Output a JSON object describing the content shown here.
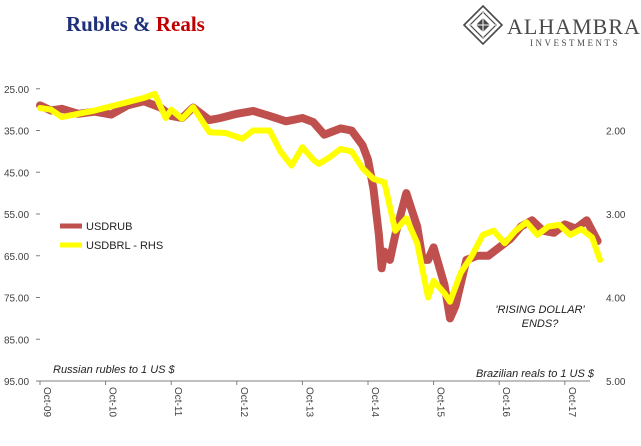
{
  "title_part1": "Rubles & ",
  "title_part2": "Reals",
  "logo": {
    "name": "ALHAMBRA",
    "sub": "INVESTMENTS"
  },
  "colors": {
    "rub": "#c0504d",
    "brl": "#ffff00",
    "title1": "#1f2f7a",
    "title2": "#c00000"
  },
  "chart_data": {
    "type": "line",
    "x_ticks": [
      "Oct-09",
      "Oct-10",
      "Oct-11",
      "Oct-12",
      "Oct-13",
      "Oct-14",
      "Oct-15",
      "Oct-16",
      "Oct-17"
    ],
    "y_left": {
      "ticks": [
        "25.00",
        "35.00",
        "45.00",
        "55.00",
        "65.00",
        "75.00",
        "85.00",
        "95.00"
      ],
      "range": [
        95,
        15
      ],
      "inverted": true
    },
    "y_right": {
      "ticks": [
        "2.00",
        "3.00",
        "4.00",
        "5.00"
      ],
      "range": [
        5.0,
        1.0
      ],
      "inverted": true
    },
    "annotations": {
      "rising": "'RISING DOLLAR'",
      "ends": "ENDS?",
      "left_note": "Russian rubles to 1 US $",
      "right_note": "Brazilian reals to 1 US $"
    },
    "series": [
      {
        "name": "USDRUB",
        "axis": "left",
        "points": [
          [
            "2009-10",
            29.0
          ],
          [
            "2009-12",
            30.2
          ],
          [
            "2010-02",
            29.8
          ],
          [
            "2010-05",
            31.0
          ],
          [
            "2010-08",
            30.5
          ],
          [
            "2010-11",
            31.2
          ],
          [
            "2011-02",
            29.0
          ],
          [
            "2011-05",
            28.0
          ],
          [
            "2011-08",
            29.5
          ],
          [
            "2011-10",
            31.5
          ],
          [
            "2011-12",
            32.0
          ],
          [
            "2012-02",
            29.5
          ],
          [
            "2012-05",
            32.5
          ],
          [
            "2012-07",
            32.0
          ],
          [
            "2012-10",
            31.0
          ],
          [
            "2013-01",
            30.3
          ],
          [
            "2013-04",
            31.5
          ],
          [
            "2013-07",
            32.8
          ],
          [
            "2013-10",
            32.0
          ],
          [
            "2013-12",
            33.0
          ],
          [
            "2014-02",
            36.0
          ],
          [
            "2014-03",
            35.5
          ],
          [
            "2014-05",
            34.5
          ],
          [
            "2014-07",
            35.0
          ],
          [
            "2014-09",
            38.5
          ],
          [
            "2014-10",
            42.0
          ],
          [
            "2014-11",
            49.0
          ],
          [
            "2014-12",
            60.0
          ],
          [
            "2014-12-16",
            68.0
          ],
          [
            "2015-01",
            64.0
          ],
          [
            "2015-02",
            66.0
          ],
          [
            "2015-03",
            60.0
          ],
          [
            "2015-05",
            50.0
          ],
          [
            "2015-06",
            54.0
          ],
          [
            "2015-07",
            58.0
          ],
          [
            "2015-08",
            66.0
          ],
          [
            "2015-09",
            66.0
          ],
          [
            "2015-10",
            63.0
          ],
          [
            "2015-12",
            72.0
          ],
          [
            "2016-01",
            80.0
          ],
          [
            "2016-02",
            77.0
          ],
          [
            "2016-04",
            66.0
          ],
          [
            "2016-06",
            65.0
          ],
          [
            "2016-08",
            65.0
          ],
          [
            "2016-10",
            63.0
          ],
          [
            "2016-12",
            61.0
          ],
          [
            "2017-02",
            58.0
          ],
          [
            "2017-04",
            56.5
          ],
          [
            "2017-06",
            59.0
          ],
          [
            "2017-08",
            59.5
          ],
          [
            "2017-10",
            57.5
          ],
          [
            "2017-12",
            58.5
          ],
          [
            "2018-02",
            56.5
          ],
          [
            "2018-04",
            61.5
          ]
        ]
      },
      {
        "name": "USDBRL - RHS",
        "axis": "right",
        "points": [
          [
            "2009-10",
            1.73
          ],
          [
            "2009-12",
            1.75
          ],
          [
            "2010-02",
            1.84
          ],
          [
            "2010-05",
            1.8
          ],
          [
            "2010-08",
            1.76
          ],
          [
            "2010-11",
            1.71
          ],
          [
            "2011-02",
            1.66
          ],
          [
            "2011-05",
            1.61
          ],
          [
            "2011-07",
            1.56
          ],
          [
            "2011-09",
            1.85
          ],
          [
            "2011-10",
            1.75
          ],
          [
            "2011-12",
            1.86
          ],
          [
            "2012-02",
            1.72
          ],
          [
            "2012-05",
            2.02
          ],
          [
            "2012-08",
            2.03
          ],
          [
            "2012-11",
            2.1
          ],
          [
            "2013-01",
            2.0
          ],
          [
            "2013-04",
            2.0
          ],
          [
            "2013-06",
            2.25
          ],
          [
            "2013-08",
            2.42
          ],
          [
            "2013-10",
            2.2
          ],
          [
            "2013-12",
            2.35
          ],
          [
            "2014-01",
            2.4
          ],
          [
            "2014-03",
            2.32
          ],
          [
            "2014-05",
            2.22
          ],
          [
            "2014-07",
            2.25
          ],
          [
            "2014-09",
            2.45
          ],
          [
            "2014-11",
            2.58
          ],
          [
            "2015-01",
            2.62
          ],
          [
            "2015-03",
            3.2
          ],
          [
            "2015-05",
            3.05
          ],
          [
            "2015-07",
            3.35
          ],
          [
            "2015-09",
            4.0
          ],
          [
            "2015-10",
            3.8
          ],
          [
            "2015-12",
            3.95
          ],
          [
            "2016-01",
            4.05
          ],
          [
            "2016-03",
            3.7
          ],
          [
            "2016-05",
            3.5
          ],
          [
            "2016-07",
            3.25
          ],
          [
            "2016-09",
            3.2
          ],
          [
            "2016-11",
            3.35
          ],
          [
            "2017-01",
            3.2
          ],
          [
            "2017-03",
            3.1
          ],
          [
            "2017-05",
            3.25
          ],
          [
            "2017-07",
            3.15
          ],
          [
            "2017-09",
            3.13
          ],
          [
            "2017-11",
            3.25
          ],
          [
            "2018-01",
            3.18
          ],
          [
            "2018-03",
            3.28
          ],
          [
            "2018-05",
            3.55
          ]
        ]
      }
    ]
  }
}
